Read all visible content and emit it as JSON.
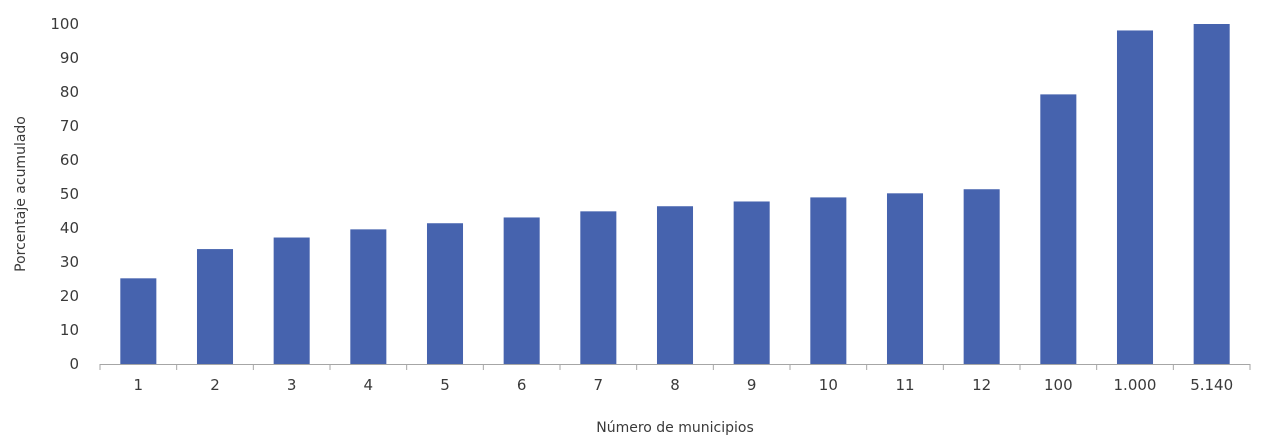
{
  "chart_data": {
    "type": "bar",
    "title": "",
    "xlabel": "Número de municipios",
    "ylabel": "Porcentaje acumulado",
    "categories": [
      "1",
      "2",
      "3",
      "4",
      "5",
      "6",
      "7",
      "8",
      "9",
      "10",
      "11",
      "12",
      "100",
      "1.000",
      "5.140"
    ],
    "values": [
      25.2,
      33.8,
      37.2,
      39.6,
      41.4,
      43.1,
      44.9,
      46.4,
      47.8,
      49.0,
      50.2,
      51.4,
      79.3,
      98.1,
      100
    ],
    "ylim": [
      0,
      100
    ],
    "yticks": [
      "0",
      "10",
      "20",
      "30",
      "40",
      "50",
      "60",
      "70",
      "80",
      "90",
      "100"
    ],
    "grid": false,
    "legend": "none",
    "bar_color": "#4663ae"
  }
}
